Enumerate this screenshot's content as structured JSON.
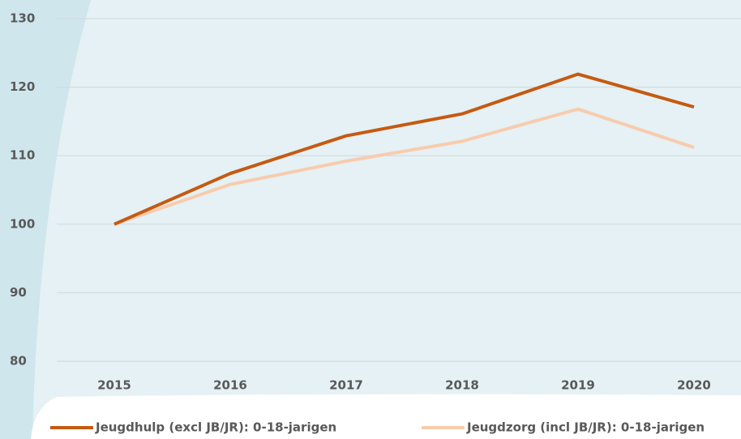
{
  "chart_data": {
    "type": "line",
    "categories": [
      "2015",
      "2016",
      "2017",
      "2018",
      "2019",
      "2020"
    ],
    "series": [
      {
        "name": "Jeugdhulp (excl JB/JR): 0-18-jarigen",
        "color": "#c55a11",
        "values": [
          100,
          107.4,
          112.9,
          116.1,
          121.9,
          117.1
        ]
      },
      {
        "name": "Jeugdzorg (incl JB/JR): 0-18-jarigen",
        "color": "#f8cbad",
        "values": [
          100,
          105.8,
          109.2,
          112.1,
          116.8,
          111.2
        ]
      }
    ],
    "ylim": [
      80,
      130
    ],
    "yticks": [
      80,
      90,
      100,
      110,
      120,
      130
    ],
    "grid": true,
    "legend": "bottom"
  }
}
